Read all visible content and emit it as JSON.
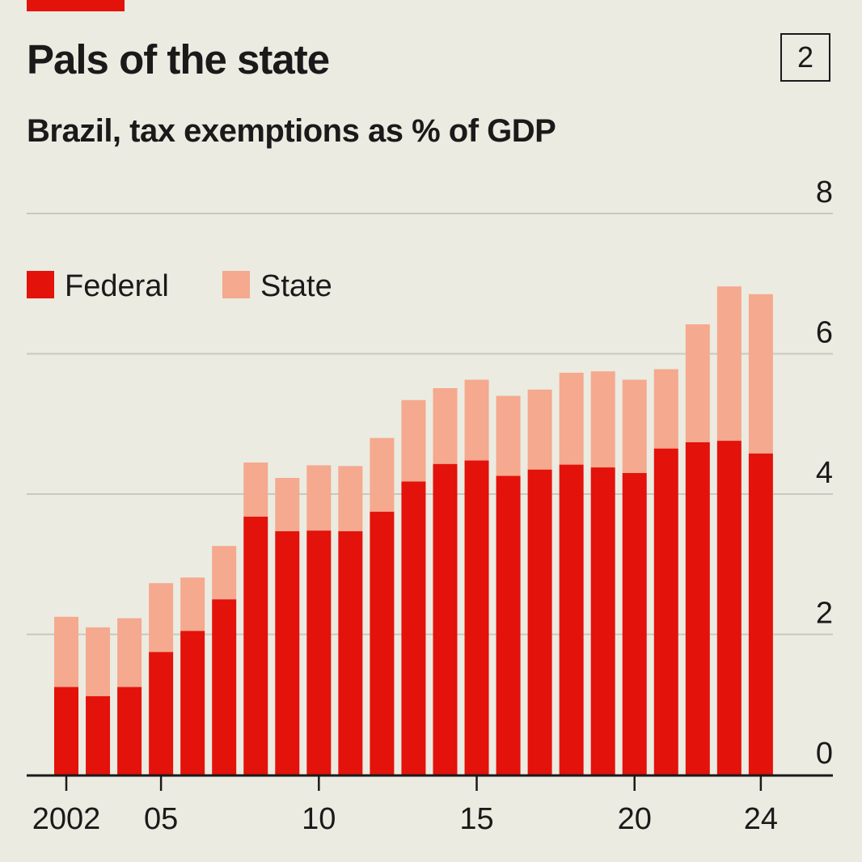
{
  "header": {
    "title": "Pals of the state",
    "chart_number": "2",
    "subtitle": "Brazil, tax exemptions as % of GDP"
  },
  "colors": {
    "background": "#ebebe1",
    "federal": "#e3120b",
    "state": "#f5a98e",
    "accent_tag": "#e3120b",
    "gridline": "#c8c8c0",
    "axis": "#1a1a1a"
  },
  "chart_data": {
    "type": "bar",
    "stacked": true,
    "title": "Pals of the state",
    "subtitle": "Brazil, tax exemptions as % of GDP",
    "xlabel": "",
    "ylabel": "",
    "ylim": [
      0,
      8
    ],
    "yticks": [
      0,
      2,
      4,
      6,
      8
    ],
    "ytick_labels": [
      "0",
      "2",
      "4",
      "6",
      "8"
    ],
    "y_axis_side": "right",
    "grid": true,
    "legend": {
      "placement": "top-left",
      "entries": [
        "Federal",
        "State"
      ]
    },
    "categories": [
      2002,
      2003,
      2004,
      2005,
      2006,
      2007,
      2008,
      2009,
      2010,
      2011,
      2012,
      2013,
      2014,
      2015,
      2016,
      2017,
      2018,
      2019,
      2020,
      2021,
      2022,
      2023,
      2024
    ],
    "xticks": [
      2002,
      2005,
      2010,
      2015,
      2020,
      2024
    ],
    "xtick_labels": [
      "2002",
      "05",
      "10",
      "15",
      "20",
      "24"
    ],
    "series": [
      {
        "name": "Federal",
        "color": "#e3120b",
        "values": [
          1.25,
          1.12,
          1.25,
          1.75,
          2.05,
          2.5,
          3.68,
          3.47,
          3.48,
          3.47,
          3.75,
          4.18,
          4.43,
          4.48,
          4.26,
          4.35,
          4.42,
          4.38,
          4.3,
          4.65,
          4.74,
          4.76,
          4.58
        ]
      },
      {
        "name": "State",
        "color": "#f5a98e",
        "values": [
          1.0,
          0.98,
          0.98,
          0.98,
          0.76,
          0.76,
          0.77,
          0.76,
          0.93,
          0.93,
          1.05,
          1.16,
          1.08,
          1.15,
          1.14,
          1.14,
          1.31,
          1.37,
          1.33,
          1.13,
          1.68,
          2.2,
          2.27
        ]
      }
    ]
  }
}
